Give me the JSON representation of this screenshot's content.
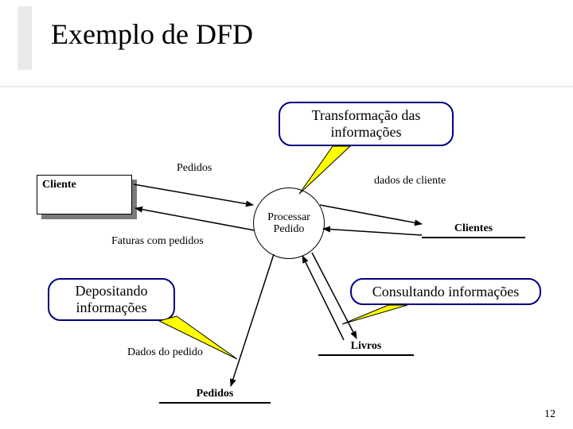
{
  "title": "Exemplo de DFD",
  "page_number": "12",
  "colors": {
    "callout_border": "#000080",
    "pointer_fill": "#ffff00",
    "pointer_stroke": "#000000",
    "arrow_stroke": "#000000",
    "entity_shadow": "#7a7a7a",
    "accent": "#eaeaea"
  },
  "callouts": {
    "transform": "Transformação das\ninformações",
    "deposit": "Depositando\ninformações",
    "consult": "Consultando informações"
  },
  "entity": {
    "cliente": "Cliente"
  },
  "process": {
    "processar_pedido": "Processar\nPedido"
  },
  "datastores": {
    "clientes": "Clientes",
    "livros": "Livros",
    "pedidos": "Pedidos"
  },
  "flows": {
    "pedidos": "Pedidos",
    "dados_cliente": "dados de cliente",
    "faturas": "Faturas com pedidos",
    "dados_pedido": "Dados do pedido"
  }
}
